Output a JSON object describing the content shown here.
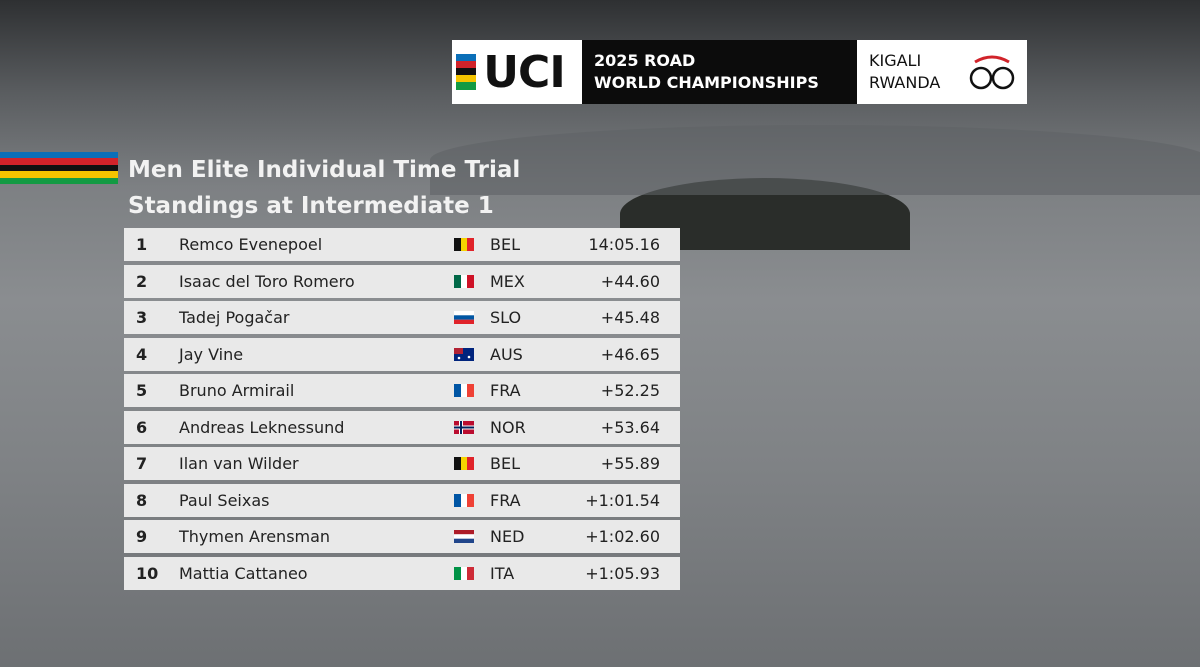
{
  "header": {
    "logo": "UCI",
    "event_line1": "2025 ROAD",
    "event_line2": "WORLD CHAMPIONSHIPS",
    "host_line1": "KIGALI",
    "host_line2": "RWANDA"
  },
  "title": "Men Elite Individual Time Trial",
  "subtitle": "Standings at Intermediate 1",
  "table": {
    "rows": [
      [
        "1",
        "Remco Evenepoel",
        "BEL",
        "14:05.16"
      ],
      [
        "2",
        "Isaac del Toro Romero",
        "MEX",
        "+44.60"
      ],
      [
        "3",
        "Tadej Pogačar",
        "SLO",
        "+45.48"
      ],
      [
        "4",
        "Jay Vine",
        "AUS",
        "+46.65"
      ],
      [
        "5",
        "Bruno Armirail",
        "FRA",
        "+52.25"
      ],
      [
        "6",
        "Andreas Leknessund",
        "NOR",
        "+53.64"
      ],
      [
        "7",
        "Ilan van Wilder",
        "BEL",
        "+55.89"
      ],
      [
        "8",
        "Paul Seixas",
        "FRA",
        "+1:01.54"
      ],
      [
        "9",
        "Thymen Arensman",
        "NED",
        "+1:02.60"
      ],
      [
        "10",
        "Mattia Cattaneo",
        "ITA",
        "+1:05.93"
      ]
    ]
  }
}
